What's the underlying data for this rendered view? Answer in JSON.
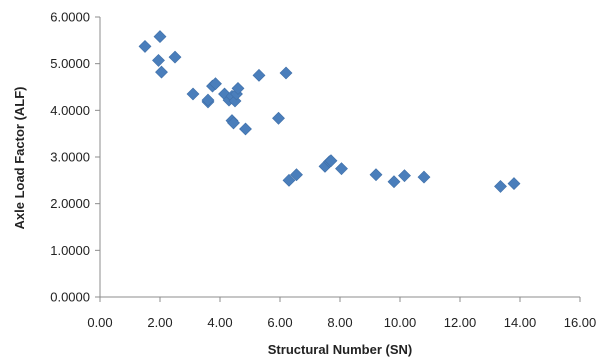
{
  "chart_data": {
    "type": "scatter",
    "xlabel": "Structural Number (SN)",
    "ylabel": "Axle Load Factor (ALF)",
    "xlim": [
      0,
      16
    ],
    "ylim": [
      0,
      6
    ],
    "x_ticks": [
      "0.00",
      "2.00",
      "4.00",
      "6.00",
      "8.00",
      "10.00",
      "12.00",
      "14.00",
      "16.00"
    ],
    "y_ticks": [
      "0.0000",
      "1.0000",
      "2.0000",
      "3.0000",
      "4.0000",
      "5.0000",
      "6.0000"
    ],
    "grid": false,
    "legend": "none",
    "marker": "diamond",
    "marker_color": "#4a7ebb",
    "series": [
      {
        "points": [
          [
            1.5,
            5.37
          ],
          [
            2.0,
            5.58
          ],
          [
            1.95,
            5.07
          ],
          [
            2.5,
            5.14
          ],
          [
            2.05,
            4.82
          ],
          [
            3.1,
            4.35
          ],
          [
            3.6,
            4.18
          ],
          [
            3.6,
            4.22
          ],
          [
            3.75,
            4.52
          ],
          [
            3.85,
            4.57
          ],
          [
            4.15,
            4.35
          ],
          [
            4.3,
            4.22
          ],
          [
            4.4,
            4.3
          ],
          [
            4.5,
            4.2
          ],
          [
            4.55,
            4.35
          ],
          [
            4.6,
            4.47
          ],
          [
            4.4,
            3.78
          ],
          [
            4.45,
            3.73
          ],
          [
            4.85,
            3.6
          ],
          [
            5.3,
            4.75
          ],
          [
            5.95,
            3.83
          ],
          [
            6.2,
            4.8
          ],
          [
            6.3,
            2.5
          ],
          [
            6.55,
            2.62
          ],
          [
            7.5,
            2.8
          ],
          [
            7.65,
            2.9
          ],
          [
            7.7,
            2.92
          ],
          [
            8.05,
            2.75
          ],
          [
            9.2,
            2.62
          ],
          [
            9.8,
            2.47
          ],
          [
            10.15,
            2.6
          ],
          [
            10.8,
            2.57
          ],
          [
            13.35,
            2.37
          ],
          [
            13.8,
            2.43
          ]
        ]
      }
    ]
  }
}
